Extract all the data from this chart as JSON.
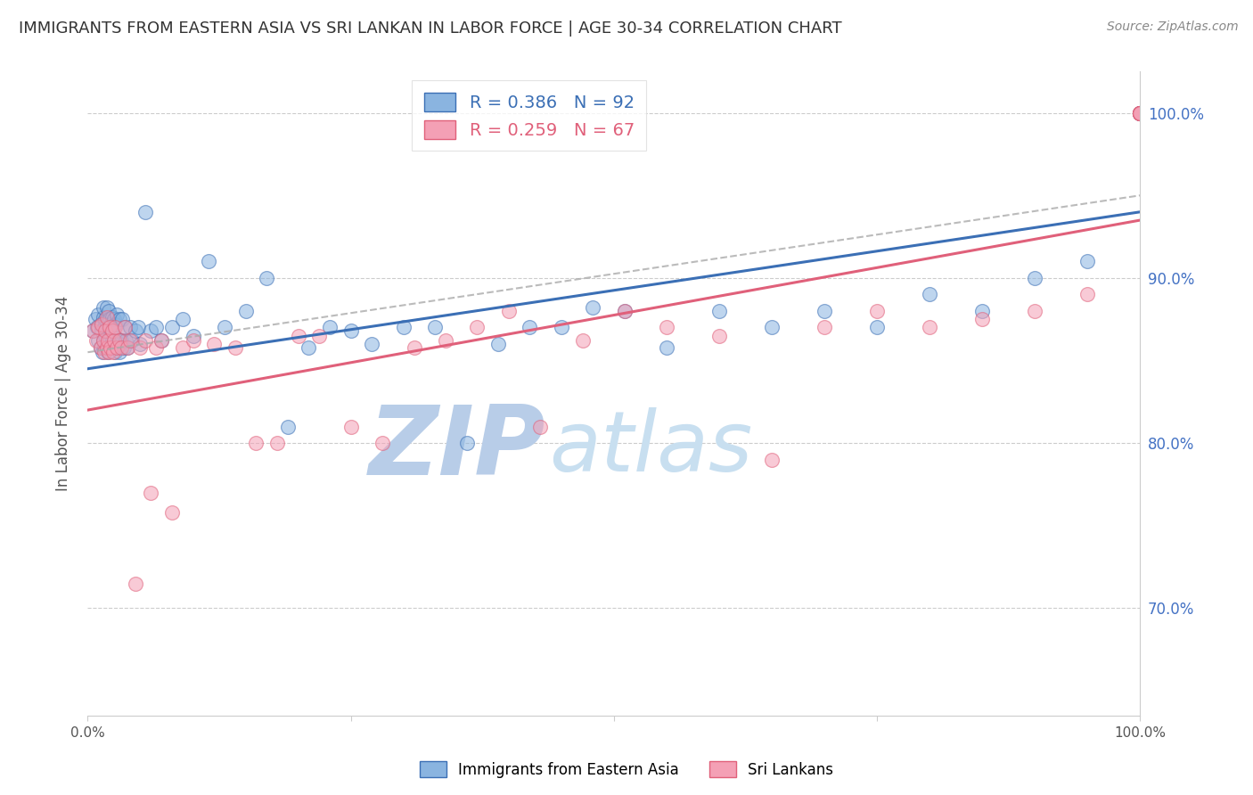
{
  "title": "IMMIGRANTS FROM EASTERN ASIA VS SRI LANKAN IN LABOR FORCE | AGE 30-34 CORRELATION CHART",
  "source": "Source: ZipAtlas.com",
  "ylabel": "In Labor Force | Age 30-34",
  "ytick_labels": [
    "70.0%",
    "80.0%",
    "90.0%",
    "100.0%"
  ],
  "ytick_values": [
    0.7,
    0.8,
    0.9,
    1.0
  ],
  "xlim": [
    0.0,
    1.0
  ],
  "ylim": [
    0.635,
    1.025
  ],
  "blue_color": "#8ab4e0",
  "pink_color": "#f4a0b5",
  "blue_line_color": "#3b6fb5",
  "pink_line_color": "#e0607a",
  "legend_R_blue": "R = 0.386",
  "legend_N_blue": "N = 92",
  "legend_R_pink": "R = 0.259",
  "legend_N_pink": "N = 67",
  "watermark_zip_color": "#b8cde8",
  "watermark_atlas_color": "#c8dff0",
  "blue_line_intercept": 0.845,
  "blue_line_slope": 0.095,
  "pink_line_intercept": 0.82,
  "pink_line_slope": 0.115,
  "dash_line_intercept": 0.855,
  "dash_line_slope": 0.095,
  "blue_scatter_x": [
    0.005,
    0.007,
    0.009,
    0.01,
    0.01,
    0.012,
    0.012,
    0.013,
    0.014,
    0.015,
    0.015,
    0.015,
    0.016,
    0.016,
    0.017,
    0.017,
    0.018,
    0.018,
    0.018,
    0.019,
    0.019,
    0.02,
    0.02,
    0.02,
    0.021,
    0.021,
    0.022,
    0.022,
    0.023,
    0.023,
    0.024,
    0.024,
    0.025,
    0.025,
    0.026,
    0.026,
    0.027,
    0.028,
    0.028,
    0.029,
    0.03,
    0.03,
    0.031,
    0.032,
    0.033,
    0.034,
    0.035,
    0.036,
    0.038,
    0.04,
    0.042,
    0.045,
    0.048,
    0.05,
    0.055,
    0.06,
    0.065,
    0.07,
    0.08,
    0.09,
    0.1,
    0.115,
    0.13,
    0.15,
    0.17,
    0.19,
    0.21,
    0.23,
    0.25,
    0.27,
    0.3,
    0.33,
    0.36,
    0.39,
    0.42,
    0.45,
    0.48,
    0.51,
    0.55,
    0.6,
    0.65,
    0.7,
    0.75,
    0.8,
    0.85,
    0.9,
    0.95,
    1.0,
    1.0,
    1.0,
    1.0,
    1.0
  ],
  "blue_scatter_y": [
    0.868,
    0.875,
    0.87,
    0.862,
    0.878,
    0.858,
    0.872,
    0.868,
    0.855,
    0.862,
    0.876,
    0.882,
    0.858,
    0.87,
    0.865,
    0.875,
    0.86,
    0.872,
    0.882,
    0.855,
    0.875,
    0.858,
    0.87,
    0.88,
    0.862,
    0.875,
    0.858,
    0.872,
    0.862,
    0.876,
    0.858,
    0.87,
    0.862,
    0.875,
    0.855,
    0.872,
    0.858,
    0.86,
    0.878,
    0.862,
    0.855,
    0.875,
    0.86,
    0.862,
    0.875,
    0.858,
    0.87,
    0.862,
    0.858,
    0.87,
    0.862,
    0.868,
    0.87,
    0.86,
    0.94,
    0.868,
    0.87,
    0.862,
    0.87,
    0.875,
    0.865,
    0.91,
    0.87,
    0.88,
    0.9,
    0.81,
    0.858,
    0.87,
    0.868,
    0.86,
    0.87,
    0.87,
    0.8,
    0.86,
    0.87,
    0.87,
    0.882,
    0.88,
    0.858,
    0.88,
    0.87,
    0.88,
    0.87,
    0.89,
    0.88,
    0.9,
    0.91,
    1.0,
    1.0,
    1.0,
    1.0,
    1.0
  ],
  "pink_scatter_x": [
    0.005,
    0.008,
    0.01,
    0.012,
    0.013,
    0.015,
    0.016,
    0.017,
    0.018,
    0.018,
    0.019,
    0.02,
    0.021,
    0.022,
    0.023,
    0.024,
    0.025,
    0.026,
    0.028,
    0.03,
    0.032,
    0.035,
    0.038,
    0.04,
    0.045,
    0.05,
    0.055,
    0.06,
    0.065,
    0.07,
    0.08,
    0.09,
    0.1,
    0.12,
    0.14,
    0.16,
    0.18,
    0.2,
    0.22,
    0.25,
    0.28,
    0.31,
    0.34,
    0.37,
    0.4,
    0.43,
    0.47,
    0.51,
    0.55,
    0.6,
    0.65,
    0.7,
    0.75,
    0.8,
    0.85,
    0.9,
    0.95,
    1.0,
    1.0,
    1.0,
    1.0,
    1.0,
    1.0,
    1.0,
    1.0,
    1.0,
    1.0
  ],
  "pink_scatter_y": [
    0.868,
    0.862,
    0.87,
    0.858,
    0.872,
    0.862,
    0.855,
    0.868,
    0.858,
    0.876,
    0.862,
    0.855,
    0.87,
    0.858,
    0.868,
    0.855,
    0.862,
    0.87,
    0.858,
    0.862,
    0.858,
    0.87,
    0.858,
    0.862,
    0.715,
    0.858,
    0.862,
    0.77,
    0.858,
    0.862,
    0.758,
    0.858,
    0.862,
    0.86,
    0.858,
    0.8,
    0.8,
    0.865,
    0.865,
    0.81,
    0.8,
    0.858,
    0.862,
    0.87,
    0.88,
    0.81,
    0.862,
    0.88,
    0.87,
    0.865,
    0.79,
    0.87,
    0.88,
    0.87,
    0.875,
    0.88,
    0.89,
    1.0,
    1.0,
    1.0,
    1.0,
    1.0,
    1.0,
    1.0,
    1.0,
    1.0,
    1.0
  ]
}
